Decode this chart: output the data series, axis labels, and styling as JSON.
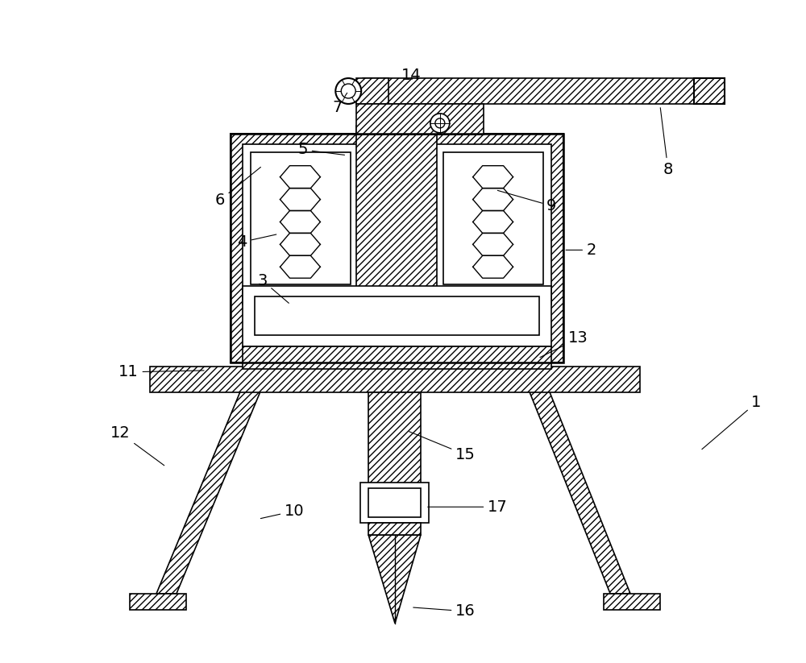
{
  "bg_color": "#ffffff",
  "figsize": [
    10,
    8.23
  ],
  "dpi": 100,
  "labels": {
    "1": [
      870,
      560,
      940,
      500
    ],
    "2": [
      700,
      310,
      735,
      310
    ],
    "3": [
      360,
      378,
      325,
      348
    ],
    "4": [
      345,
      290,
      300,
      300
    ],
    "5": [
      430,
      192,
      375,
      185
    ],
    "6": [
      325,
      205,
      272,
      248
    ],
    "7": [
      432,
      112,
      418,
      133
    ],
    "8": [
      820,
      130,
      830,
      210
    ],
    "9": [
      615,
      235,
      685,
      255
    ],
    "10": [
      320,
      645,
      365,
      635
    ],
    "11": [
      255,
      460,
      158,
      462
    ],
    "12": [
      205,
      580,
      148,
      538
    ],
    "13": [
      668,
      445,
      718,
      420
    ],
    "14": [
      512,
      100,
      510,
      92
    ],
    "15": [
      505,
      535,
      578,
      565
    ],
    "16": [
      510,
      755,
      578,
      760
    ],
    "17": [
      528,
      630,
      618,
      630
    ]
  }
}
